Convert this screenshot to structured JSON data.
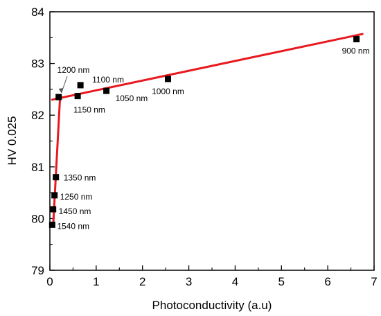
{
  "chart_data": {
    "type": "scatter",
    "xlabel": "Photoconductivity (a.u)",
    "ylabel": "HV 0.025",
    "xlim": [
      0,
      7
    ],
    "ylim": [
      79,
      84
    ],
    "xticks": [
      0,
      1,
      2,
      3,
      4,
      5,
      6,
      7
    ],
    "yticks": [
      79,
      80,
      81,
      82,
      83,
      84
    ],
    "grid": false,
    "marker_color": "#000000",
    "fit_color": "#e8191f",
    "series": [
      {
        "points": [
          {
            "x": 6.62,
            "y": 83.47,
            "label": "900 nm"
          },
          {
            "x": 2.55,
            "y": 82.7,
            "label": "1000 nm"
          },
          {
            "x": 1.22,
            "y": 82.47,
            "label": "1050 nm"
          },
          {
            "x": 0.66,
            "y": 82.58,
            "label": "1100 nm"
          },
          {
            "x": 0.6,
            "y": 82.37,
            "label": "1150 nm"
          },
          {
            "x": 0.19,
            "y": 82.35,
            "label": "1200 nm"
          },
          {
            "x": 0.13,
            "y": 80.8,
            "label": "1350 nm"
          },
          {
            "x": 0.1,
            "y": 80.45,
            "label": "1250 nm"
          },
          {
            "x": 0.07,
            "y": 80.18,
            "label": "1450 nm"
          },
          {
            "x": 0.05,
            "y": 79.88,
            "label": "1540 nm"
          }
        ]
      }
    ],
    "fit_lines": [
      {
        "x": [
          0.05,
          6.75
        ],
        "y": [
          82.3,
          83.57
        ]
      },
      {
        "x": [
          0.07,
          0.22
        ],
        "y": [
          79.85,
          82.35
        ]
      }
    ]
  }
}
